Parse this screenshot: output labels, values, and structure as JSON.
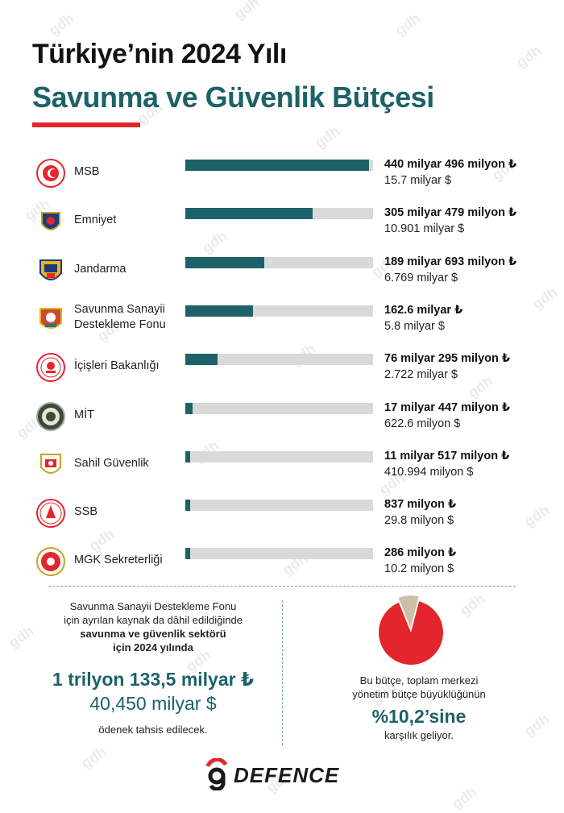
{
  "header": {
    "title_line1": "Türkiye’nin 2024 Yılı",
    "title_line2": "Savunma ve Güvenlik Bütçesi"
  },
  "chart_data": {
    "type": "bar",
    "orientation": "horizontal",
    "categories": [
      "MSB",
      "Emniyet",
      "Jandarma",
      "Savunma Sanayii Destekleme Fonu",
      "İçişleri Bakanlığı",
      "MİT",
      "Sahil Güvenlik",
      "SSB",
      "MGK Sekreterliği"
    ],
    "values": [
      440.496,
      305.479,
      189.693,
      162.6,
      76.295,
      17.447,
      11.517,
      0.837,
      0.286
    ],
    "unit": "milyar ₺",
    "xlim": [
      0,
      450
    ],
    "rows": [
      {
        "label_lines": [
          "MSB"
        ],
        "value_try_label": "440 milyar 496 milyon ₺",
        "value_usd_label": "15.7 milyar $",
        "emblem": "msb-emblem-icon"
      },
      {
        "label_lines": [
          "Emniyet"
        ],
        "value_try_label": "305 milyar 479 milyon ₺",
        "value_usd_label": "10.901 milyar $",
        "emblem": "emniyet-emblem-icon"
      },
      {
        "label_lines": [
          "Jandarma"
        ],
        "value_try_label": "189 milyar 693 milyon ₺",
        "value_usd_label": "6.769 milyar $",
        "emblem": "jandarma-emblem-icon"
      },
      {
        "label_lines": [
          "Savunma Sanayii",
          "Destekleme Fonu"
        ],
        "value_try_label": "162.6 milyar ₺",
        "value_usd_label": "5.8 milyar $",
        "emblem": "ssdf-emblem-icon"
      },
      {
        "label_lines": [
          "İçişleri Bakanlığı"
        ],
        "value_try_label": "76 milyar 295 milyon ₺",
        "value_usd_label": "2.722 milyar $",
        "emblem": "icisleri-emblem-icon"
      },
      {
        "label_lines": [
          "MİT"
        ],
        "value_try_label": "17 milyar 447 milyon ₺",
        "value_usd_label": "622.6 milyon $",
        "emblem": "mit-emblem-icon"
      },
      {
        "label_lines": [
          "Sahil Güvenlik"
        ],
        "value_try_label": "11 milyar 517 milyon ₺",
        "value_usd_label": "410.994 milyon $",
        "emblem": "sahil-guvenlik-emblem-icon"
      },
      {
        "label_lines": [
          "SSB"
        ],
        "value_try_label": "837 milyon ₺",
        "value_usd_label": "29.8 milyon $",
        "emblem": "ssb-emblem-icon"
      },
      {
        "label_lines": [
          "MGK Sekreterliği"
        ],
        "value_try_label": "286 milyon ₺",
        "value_usd_label": "10.2 milyon $",
        "emblem": "mgk-emblem-icon"
      }
    ],
    "colors": {
      "bar": "#1d6269",
      "track": "#d9d9d9"
    }
  },
  "summary_left": {
    "line1": "Savunma Sanayii Destekleme Fonu",
    "line2": "için ayrılan kaynak da dâhil edildiğinde",
    "line3": "savunma ve güvenlik sektörü",
    "line4": "için 2024 yılında",
    "total_try": "1 trilyon 133,5 milyar ₺",
    "total_usd": "40,450 milyar $",
    "line5": "ödenek tahsis edilecek."
  },
  "summary_right": {
    "pie": {
      "type": "pie",
      "share_percent": 10.2,
      "colors": {
        "share": "#cbbfa6",
        "rest": "#e3262c"
      }
    },
    "line1": "Bu bütçe, toplam merkezi",
    "line2": "yönetim bütçe büyüklüğünün",
    "percent_label": "%10,2’sine",
    "line3": "karşılık geliyor."
  },
  "brand": {
    "logo_icon": "gdefence-logo-icon",
    "name": "DEFENCE"
  },
  "colors": {
    "accent_teal": "#1d6269",
    "accent_red": "#e3262c"
  }
}
